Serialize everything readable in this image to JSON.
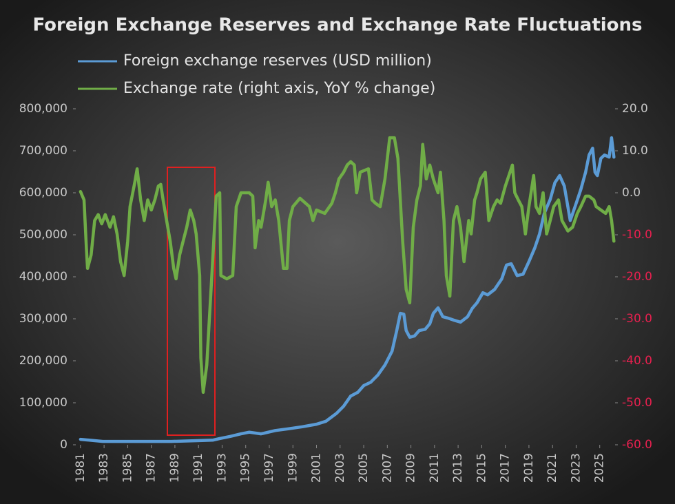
{
  "chart_data": {
    "type": "line",
    "title": "Foreign Exchange Reserves and Exchange Rate Fluctuations",
    "xlim": [
      1980.6,
      2026.3
    ],
    "xticks": [
      1981,
      1983,
      1985,
      1987,
      1989,
      1991,
      1993,
      1995,
      1997,
      1999,
      2001,
      2003,
      2005,
      2007,
      2009,
      2011,
      2013,
      2015,
      2017,
      2019,
      2021,
      2023,
      2025
    ],
    "ylim": [
      0,
      800000
    ],
    "yticks": [
      {
        "value": 0,
        "label": "0"
      },
      {
        "value": 100000,
        "label": "100,000"
      },
      {
        "value": 200000,
        "label": "200,000"
      },
      {
        "value": 300000,
        "label": "300,000"
      },
      {
        "value": 400000,
        "label": "400,000"
      },
      {
        "value": 500000,
        "label": "500,000"
      },
      {
        "value": 600000,
        "label": "600,000"
      },
      {
        "value": 700000,
        "label": "700,000"
      },
      {
        "value": 800000,
        "label": "800,000"
      }
    ],
    "y2lim": [
      -60,
      20
    ],
    "y2ticks": [
      {
        "value": -60,
        "label": "-60.0"
      },
      {
        "value": -50,
        "label": "-50.0"
      },
      {
        "value": -40,
        "label": "-40.0"
      },
      {
        "value": -30,
        "label": "-30.0"
      },
      {
        "value": -20,
        "label": "-20.0"
      },
      {
        "value": -10,
        "label": "-10.0"
      },
      {
        "value": 0,
        "label": "0.0"
      },
      {
        "value": 10,
        "label": "10.0"
      },
      {
        "value": 20,
        "label": "20.0"
      }
    ],
    "y2_negative_color": "#e8204f",
    "legend": "top-left",
    "series": [
      {
        "name": "Foreign exchange reserves (USD million)",
        "color": "#5b9bd5",
        "x": [
          1981.0,
          1982.9,
          1985.8,
          1988.7,
          1991.1,
          1992.2,
          1992.8,
          1993.7,
          1994.6,
          1995.3,
          1996.3,
          1997.5,
          1998.6,
          1999.8,
          2001.0,
          2001.8,
          2002.7,
          2003.3,
          2003.9,
          2004.5,
          2005.0,
          2005.6,
          2006.2,
          2006.8,
          2007.4,
          2007.8,
          2008.1,
          2008.4,
          2008.6,
          2008.9,
          2009.3,
          2009.7,
          2010.2,
          2010.6,
          2010.9,
          2011.3,
          2011.7,
          2012.1,
          2012.6,
          2013.2,
          2013.8,
          2014.2,
          2014.6,
          2015.1,
          2015.5,
          2016.1,
          2016.7,
          2017.1,
          2017.5,
          2018.0,
          2018.5,
          2019.0,
          2019.5,
          2019.9,
          2020.3,
          2020.8,
          2021.2,
          2021.6,
          2022.0,
          2022.5,
          2023.0,
          2023.4,
          2023.8,
          2024.1,
          2024.4,
          2024.6,
          2024.8,
          2025.1,
          2025.4,
          2025.8,
          2026.0,
          2026.2
        ],
        "values": [
          13000,
          8000,
          8000,
          8000,
          10000,
          11000,
          15000,
          20000,
          26000,
          30000,
          26000,
          34000,
          38000,
          43000,
          49000,
          56000,
          75000,
          92000,
          116000,
          125000,
          141000,
          149000,
          166000,
          190000,
          223000,
          272000,
          313000,
          311000,
          272000,
          256000,
          259000,
          272000,
          275000,
          288000,
          313000,
          326000,
          305000,
          302000,
          297000,
          292000,
          305000,
          325000,
          338000,
          362000,
          357000,
          370000,
          395000,
          428000,
          431000,
          403000,
          406000,
          436000,
          469000,
          502000,
          551000,
          584000,
          624000,
          641000,
          616000,
          534000,
          575000,
          608000,
          649000,
          690000,
          706000,
          649000,
          641000,
          682000,
          690000,
          685000,
          731000,
          685000
        ]
      },
      {
        "name": "Exchange rate (right axis, YoY % change)",
        "color": "#70ad47",
        "axis": "y2",
        "x": [
          1981.0,
          1981.3,
          1981.5,
          1981.6,
          1981.9,
          1982.2,
          1982.5,
          1982.8,
          1983.1,
          1983.5,
          1983.8,
          1984.1,
          1984.4,
          1984.7,
          1985.0,
          1985.2,
          1985.6,
          1985.8,
          1986.1,
          1986.4,
          1986.7,
          1987.0,
          1987.3,
          1987.6,
          1987.8,
          1988.0,
          1988.3,
          1988.6,
          1988.9,
          1989.1,
          1989.4,
          1989.7,
          1990.0,
          1990.3,
          1990.6,
          1990.8,
          1991.1,
          1991.2,
          1991.4,
          1991.7,
          1991.9,
          1992.2,
          1992.5,
          1992.8,
          1992.9,
          1993.4,
          1993.9,
          1994.2,
          1994.6,
          1995.3,
          1995.6,
          1995.8,
          1996.1,
          1996.3,
          1996.7,
          1996.9,
          1997.2,
          1997.5,
          1997.8,
          1998.2,
          1998.5,
          1998.7,
          1999.0,
          1999.6,
          2000.4,
          2000.7,
          2001.0,
          2001.7,
          2002.3,
          2002.6,
          2002.9,
          2003.3,
          2003.6,
          2003.9,
          2004.2,
          2004.4,
          2004.7,
          2005.4,
          2005.7,
          2006.0,
          2006.4,
          2006.8,
          2007.2,
          2007.6,
          2007.9,
          2008.3,
          2008.6,
          2008.9,
          2009.2,
          2009.5,
          2009.8,
          2010.0,
          2010.3,
          2010.6,
          2010.9,
          2011.3,
          2011.5,
          2011.8,
          2012.0,
          2012.3,
          2012.6,
          2012.9,
          2013.2,
          2013.5,
          2013.7,
          2013.9,
          2014.1,
          2014.4,
          2014.6,
          2014.9,
          2015.3,
          2015.6,
          2016.0,
          2016.3,
          2016.6,
          2017.0,
          2017.3,
          2017.6,
          2017.8,
          2018.1,
          2018.4,
          2018.7,
          2019.0,
          2019.4,
          2019.6,
          2019.9,
          2020.2,
          2020.5,
          2020.8,
          2021.1,
          2021.5,
          2021.8,
          2022.3,
          2022.7,
          2023.1,
          2023.4,
          2023.8,
          2024.1,
          2024.5,
          2024.7,
          2025.1,
          2025.5,
          2025.8,
          2026.0,
          2026.2
        ],
        "values": [
          0.3,
          -1.7,
          -13.1,
          -18.0,
          -14.8,
          -6.6,
          -5.2,
          -7.4,
          -5.2,
          -8.2,
          -5.7,
          -9.8,
          -16.4,
          -19.7,
          -11.5,
          -3.3,
          2.5,
          5.7,
          -1.7,
          -6.6,
          -1.7,
          -4.1,
          -1.7,
          1.6,
          2.0,
          -1.7,
          -6.6,
          -11.5,
          -18.0,
          -20.5,
          -14.8,
          -11.5,
          -8.2,
          -4.1,
          -6.6,
          -9.8,
          -19.7,
          -39.3,
          -47.5,
          -41.0,
          -31.1,
          -16.4,
          -0.8,
          0,
          -19.7,
          -20.5,
          -19.7,
          -3.3,
          0,
          0,
          -0.8,
          -13.1,
          -6.6,
          -8.2,
          -1.7,
          2.5,
          -3.3,
          -1.7,
          -6.6,
          -18.0,
          -18.0,
          -6.6,
          -3.3,
          -1.3,
          -3.3,
          -6.6,
          -4.1,
          -4.9,
          -2.5,
          0,
          3.3,
          4.9,
          6.6,
          7.4,
          6.6,
          0,
          4.9,
          5.7,
          -1.7,
          -2.5,
          -3.3,
          3.3,
          13.1,
          13.1,
          8.2,
          -11.5,
          -23.0,
          -26.2,
          -8.2,
          -1.7,
          1.6,
          11.5,
          3.3,
          6.6,
          3.3,
          0,
          4.9,
          -6.6,
          -19.7,
          -24.6,
          -6.6,
          -3.3,
          -8.2,
          -16.4,
          -11.5,
          -6.6,
          -9.8,
          -1.7,
          0,
          3.3,
          4.9,
          -6.6,
          -3.3,
          -1.7,
          -2.5,
          1.6,
          4.1,
          6.6,
          0,
          -1.7,
          -3.3,
          -9.8,
          -3.3,
          4.1,
          -3.3,
          -4.9,
          0,
          -9.8,
          -6.6,
          -3.3,
          -1.7,
          -6.6,
          -9.1,
          -8.2,
          -4.9,
          -3.3,
          -0.8,
          -0.8,
          -1.7,
          -3.3,
          -4.1,
          -4.9,
          -3.3,
          -6.6,
          -11.5
        ]
      }
    ]
  }
}
